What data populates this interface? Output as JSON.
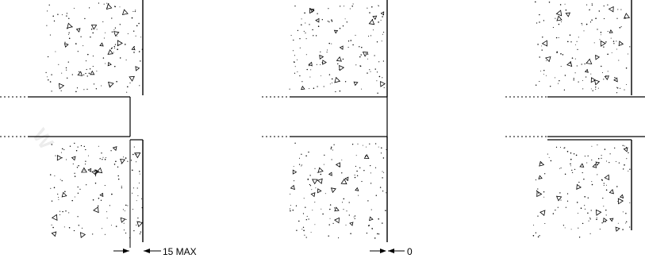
{
  "drawing": {
    "panels": [
      {
        "id": "recessed",
        "tolerance_label": "15 MAX",
        "edge": "recessed"
      },
      {
        "id": "flush",
        "tolerance_label": "0",
        "edge": "flush"
      },
      {
        "id": "projecting",
        "tolerance_label": "",
        "edge": "projecting"
      }
    ]
  }
}
